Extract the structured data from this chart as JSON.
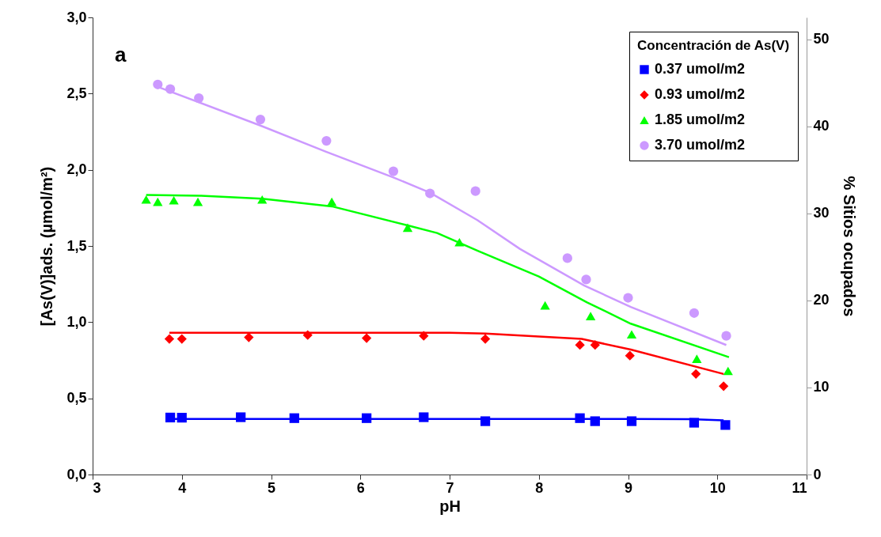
{
  "chart_data": {
    "type": "scatter",
    "xlabel": "pH",
    "ylabel": "[As(V)]ads. (µmol/m²)",
    "y2label": "% Sitios ocupados",
    "legend_title": "Concentración de As(V)",
    "legend": "top right",
    "grid": false,
    "annotations": [
      "a"
    ],
    "xlim": [
      3,
      11
    ],
    "xticks": [
      3,
      4,
      5,
      6,
      7,
      8,
      9,
      10,
      11
    ],
    "ylim": [
      0,
      3
    ],
    "yticks": [
      {
        "value": 0,
        "label": "0,0"
      },
      {
        "value": 0.5,
        "label": "0,5"
      },
      {
        "value": 1,
        "label": "1,0"
      },
      {
        "value": 1.5,
        "label": "1,5"
      },
      {
        "value": 2,
        "label": "2,0"
      },
      {
        "value": 2.5,
        "label": "2,5"
      },
      {
        "value": 3,
        "label": "3,0"
      }
    ],
    "y2lim": [
      0,
      52.5
    ],
    "y2ticks": [
      0,
      10,
      20,
      30,
      40,
      50
    ],
    "series": [
      {
        "name": "0.37 umol/m2",
        "type": "scatter",
        "marker": "square",
        "color": "#0000ff",
        "x": [
          3.87,
          4.0,
          4.66,
          5.26,
          6.07,
          6.71,
          7.4,
          8.46,
          8.63,
          9.04,
          9.74,
          10.09
        ],
        "values": [
          0.374,
          0.373,
          0.376,
          0.37,
          0.37,
          0.376,
          0.35,
          0.37,
          0.35,
          0.35,
          0.34,
          0.325
        ]
      },
      {
        "name": "0.93 umol/m2",
        "type": "scatter",
        "marker": "diamond",
        "color": "#ff0000",
        "x": [
          3.86,
          4.0,
          4.75,
          5.41,
          6.07,
          6.71,
          7.4,
          8.46,
          8.63,
          9.02,
          9.76,
          10.07
        ],
        "values": [
          0.89,
          0.89,
          0.9,
          0.915,
          0.895,
          0.91,
          0.89,
          0.85,
          0.85,
          0.78,
          0.66,
          0.58
        ]
      },
      {
        "name": "1.85 umol/m2",
        "type": "scatter",
        "marker": "triangle",
        "color": "#00ff00",
        "x": [
          3.6,
          3.73,
          3.91,
          4.18,
          4.9,
          5.68,
          6.53,
          7.11,
          8.07,
          8.58,
          9.04,
          9.77,
          10.12
        ],
        "values": [
          1.805,
          1.79,
          1.8,
          1.79,
          1.805,
          1.79,
          1.62,
          1.525,
          1.11,
          1.04,
          0.92,
          0.76,
          0.68
        ]
      },
      {
        "name": "3.70 umol/m2",
        "type": "scatter",
        "marker": "circle",
        "color": "#cc99ff",
        "x": [
          3.73,
          3.87,
          4.19,
          4.88,
          5.62,
          6.37,
          6.78,
          7.29,
          8.32,
          8.53,
          9.0,
          9.74,
          10.1
        ],
        "values": [
          2.56,
          2.53,
          2.47,
          2.33,
          2.19,
          1.99,
          1.845,
          1.86,
          1.42,
          1.28,
          1.16,
          1.06,
          0.91
        ]
      },
      {
        "type": "line",
        "color": "#0000ff",
        "x": [
          3.87,
          5,
          6,
          7,
          8,
          9,
          9.7,
          10.07
        ],
        "values": [
          0.365,
          0.365,
          0.365,
          0.365,
          0.365,
          0.365,
          0.363,
          0.355
        ]
      },
      {
        "type": "line",
        "color": "#ff0000",
        "x": [
          3.86,
          5,
          6,
          7,
          7.4,
          8.48,
          9.03,
          10.07
        ],
        "values": [
          0.93,
          0.93,
          0.93,
          0.93,
          0.925,
          0.89,
          0.82,
          0.66
        ]
      },
      {
        "type": "line",
        "color": "#00ff00",
        "x": [
          3.6,
          4.2,
          4.9,
          5.68,
          6.53,
          6.86,
          7.31,
          8.0,
          8.54,
          9.03,
          10.13
        ],
        "values": [
          1.835,
          1.83,
          1.81,
          1.76,
          1.635,
          1.585,
          1.47,
          1.3,
          1.13,
          0.99,
          0.77
        ]
      },
      {
        "type": "line",
        "color": "#cc99ff",
        "x": [
          3.75,
          4.88,
          5.61,
          6.37,
          6.78,
          7.31,
          7.79,
          8.51,
          9.03,
          10.1
        ],
        "values": [
          2.54,
          2.29,
          2.12,
          1.95,
          1.85,
          1.67,
          1.48,
          1.24,
          1.1,
          0.85
        ]
      }
    ]
  }
}
